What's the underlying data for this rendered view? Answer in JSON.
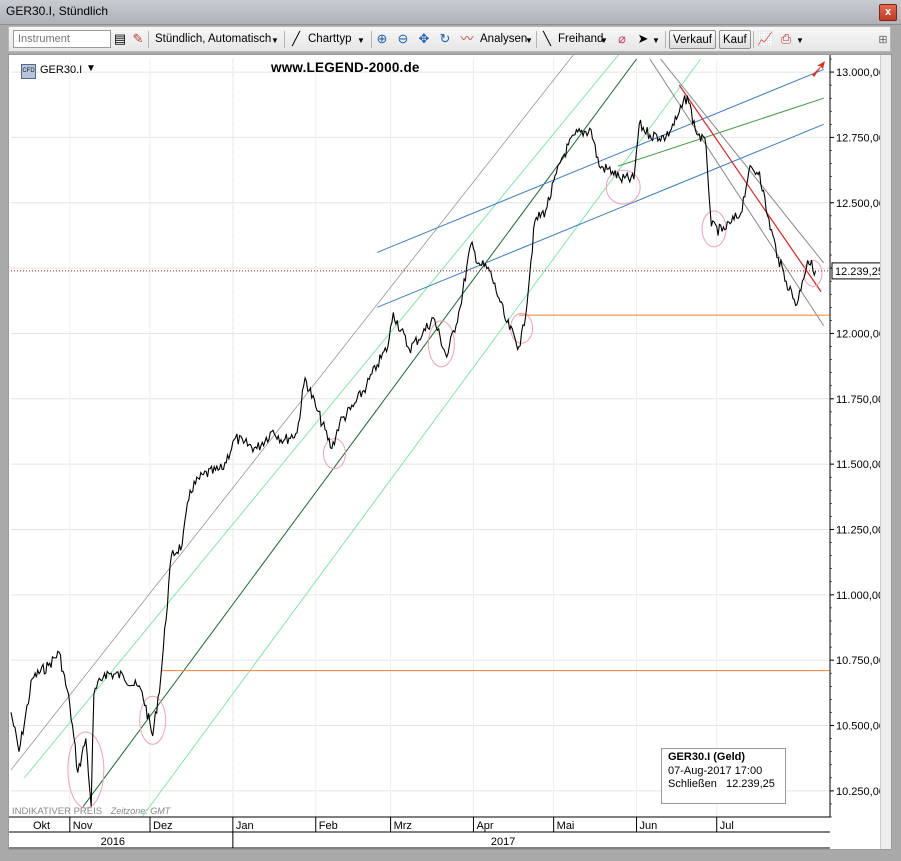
{
  "window": {
    "title": "GER30.I, Stündlich",
    "close_glyph": "x"
  },
  "toolbar": {
    "instrument_placeholder": "Instrument",
    "interval": "Stündlich,",
    "scale": "Automatisch",
    "charttype": "Charttyp",
    "analysen": "Analysen",
    "freihand": "Freihand",
    "verkauf": "Verkauf",
    "kauf": "Kauf"
  },
  "legend": {
    "symbol": "GER30.I",
    "symbol_icon_text": "CFD"
  },
  "watermark": "www.LEGEND-2000.de",
  "indicative": {
    "text": "INDIKATIVER PREIS",
    "timezone": "Zeitzone: GMT"
  },
  "infobox": {
    "title": "GER30.I (Geld)",
    "date": "07-Aug-2017 17:00",
    "close_label": "Schließen",
    "close_value": "12.239,25"
  },
  "colors": {
    "price": "#000000",
    "blue_channel": "#3a7cc0",
    "light_green": "#7fe8a8",
    "dark_green": "#1a6b2e",
    "mid_green": "#3c9a3c",
    "red": "#dd2222",
    "gray": "#888888",
    "orange": "#f08030",
    "circle": "#f0a0b0",
    "current_line": "#8b2222"
  },
  "chart_data": {
    "type": "line",
    "title": "",
    "ylim": [
      10150,
      13050
    ],
    "y_ticks": [
      "13.000,00",
      "12.750,00",
      "12.500,00",
      "12.250,00",
      "12.000,00",
      "11.750,00",
      "11.500,00",
      "11.250,00",
      "11.000,00",
      "10.750,00",
      "10.500,00",
      "10.250,00"
    ],
    "y_tick_values": [
      13000,
      12750,
      12500,
      12250,
      12000,
      11750,
      11500,
      11250,
      11000,
      10750,
      10500,
      10250
    ],
    "current_price_label": "12.239,25",
    "current_price": 12239.25,
    "months": [
      {
        "label": "Okt",
        "date": "2016-10-12"
      },
      {
        "label": "Nov",
        "date": "2016-11-01"
      },
      {
        "label": "Dez",
        "date": "2016-12-01"
      },
      {
        "label": "Jan",
        "date": "2017-01-01"
      },
      {
        "label": "Feb",
        "date": "2017-02-01"
      },
      {
        "label": "Mrz",
        "date": "2017-03-01"
      },
      {
        "label": "Apr",
        "date": "2017-04-01"
      },
      {
        "label": "Mai",
        "date": "2017-05-01"
      },
      {
        "label": "Jun",
        "date": "2017-06-01"
      },
      {
        "label": "Jul",
        "date": "2017-07-01"
      }
    ],
    "years": [
      {
        "label": "2016",
        "date": "2016-11-17"
      },
      {
        "label": "2017",
        "date": "2017-04-12"
      }
    ],
    "x_range": [
      "2016-10-10",
      "2017-08-12"
    ],
    "series": [
      {
        "values": [
          [
            "2016-10-10",
            10550
          ],
          [
            "2016-10-13",
            10400
          ],
          [
            "2016-10-18",
            10680
          ],
          [
            "2016-10-24",
            10730
          ],
          [
            "2016-10-28",
            10780
          ],
          [
            "2016-11-01",
            10580
          ],
          [
            "2016-11-04",
            10320
          ],
          [
            "2016-11-07",
            10450
          ],
          [
            "2016-11-09",
            10190
          ],
          [
            "2016-11-10",
            10620
          ],
          [
            "2016-11-14",
            10700
          ],
          [
            "2016-11-21",
            10690
          ],
          [
            "2016-11-28",
            10630
          ],
          [
            "2016-12-02",
            10460
          ],
          [
            "2016-12-05",
            10680
          ],
          [
            "2016-12-09",
            11150
          ],
          [
            "2016-12-13",
            11190
          ],
          [
            "2016-12-16",
            11400
          ],
          [
            "2016-12-21",
            11460
          ],
          [
            "2016-12-28",
            11480
          ],
          [
            "2017-01-02",
            11600
          ],
          [
            "2017-01-05",
            11580
          ],
          [
            "2017-01-10",
            11560
          ],
          [
            "2017-01-16",
            11630
          ],
          [
            "2017-01-20",
            11590
          ],
          [
            "2017-01-25",
            11620
          ],
          [
            "2017-01-28",
            11830
          ],
          [
            "2017-02-01",
            11720
          ],
          [
            "2017-02-07",
            11560
          ],
          [
            "2017-02-10",
            11660
          ],
          [
            "2017-02-15",
            11720
          ],
          [
            "2017-02-20",
            11800
          ],
          [
            "2017-02-24",
            11880
          ],
          [
            "2017-02-28",
            11950
          ],
          [
            "2017-03-02",
            12080
          ],
          [
            "2017-03-08",
            11940
          ],
          [
            "2017-03-13",
            12000
          ],
          [
            "2017-03-17",
            12060
          ],
          [
            "2017-03-22",
            11910
          ],
          [
            "2017-03-27",
            12100
          ],
          [
            "2017-03-31",
            12340
          ],
          [
            "2017-04-03",
            12270
          ],
          [
            "2017-04-07",
            12240
          ],
          [
            "2017-04-11",
            12120
          ],
          [
            "2017-04-13",
            12050
          ],
          [
            "2017-04-18",
            11950
          ],
          [
            "2017-04-20",
            12030
          ],
          [
            "2017-04-24",
            12430
          ],
          [
            "2017-04-28",
            12470
          ],
          [
            "2017-05-04",
            12670
          ],
          [
            "2017-05-09",
            12760
          ],
          [
            "2017-05-15",
            12780
          ],
          [
            "2017-05-18",
            12640
          ],
          [
            "2017-05-23",
            12620
          ],
          [
            "2017-05-26",
            12590
          ],
          [
            "2017-05-31",
            12590
          ],
          [
            "2017-06-02",
            12800
          ],
          [
            "2017-06-06",
            12760
          ],
          [
            "2017-06-12",
            12750
          ],
          [
            "2017-06-16",
            12820
          ],
          [
            "2017-06-20",
            12910
          ],
          [
            "2017-06-23",
            12780
          ],
          [
            "2017-06-27",
            12720
          ],
          [
            "2017-06-29",
            12410
          ],
          [
            "2017-07-03",
            12390
          ],
          [
            "2017-07-06",
            12420
          ],
          [
            "2017-07-10",
            12460
          ],
          [
            "2017-07-13",
            12620
          ],
          [
            "2017-07-17",
            12620
          ],
          [
            "2017-07-20",
            12450
          ],
          [
            "2017-07-24",
            12290
          ],
          [
            "2017-07-27",
            12200
          ],
          [
            "2017-07-31",
            12110
          ],
          [
            "2017-08-02",
            12200
          ],
          [
            "2017-08-04",
            12280
          ],
          [
            "2017-08-07",
            12239.25
          ]
        ]
      }
    ],
    "horizontal_levels": [
      {
        "value": 12070,
        "from": "2017-04-18",
        "color": "orange"
      },
      {
        "value": 10710,
        "from": "2016-12-05",
        "color": "orange"
      }
    ]
  }
}
